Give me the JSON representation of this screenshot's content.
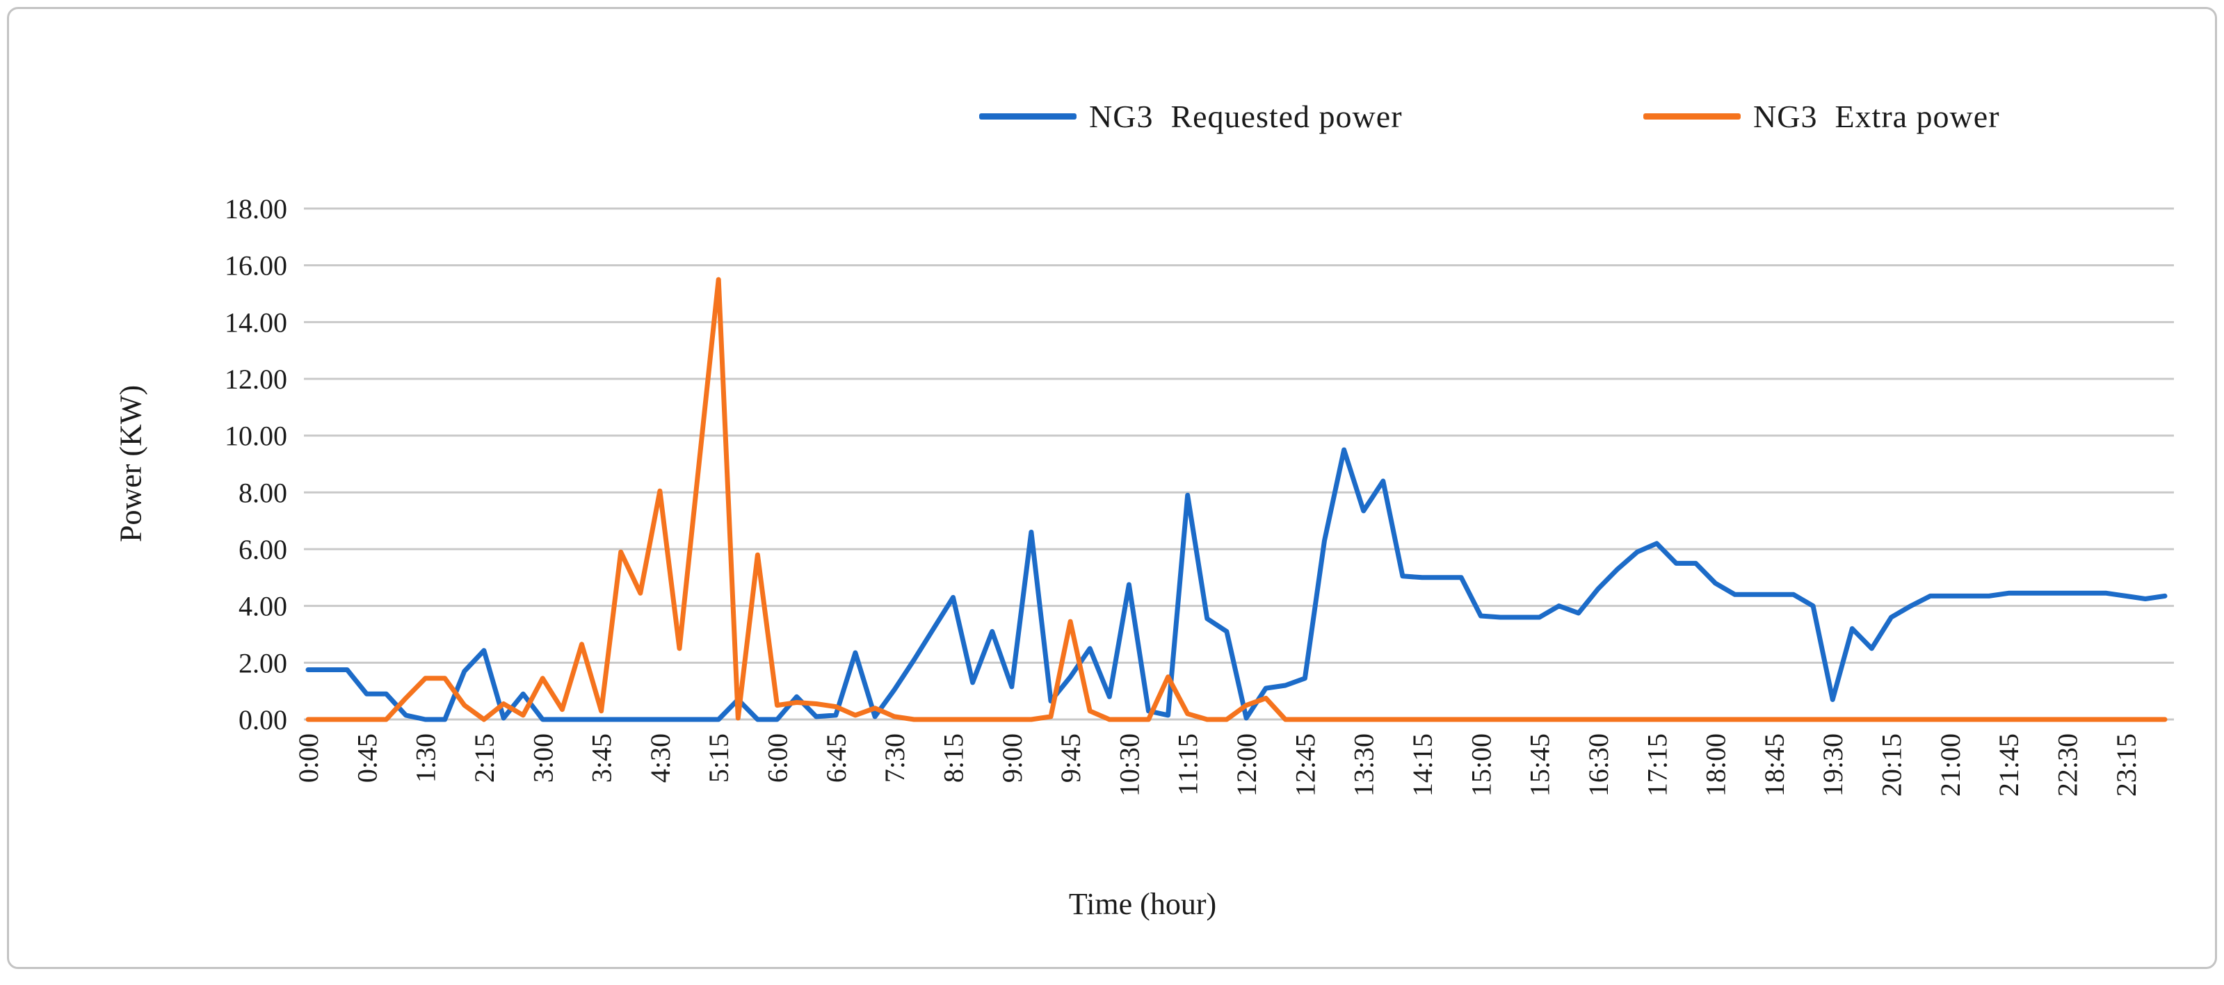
{
  "chart_data": {
    "type": "line",
    "title": "",
    "xlabel": "Time (hour)",
    "ylabel": "Power (KW)",
    "ylim": [
      0,
      18
    ],
    "y_tick_step": 2,
    "x_label_every": 3,
    "grid": "horizontal-only",
    "legend_position": "top",
    "categories": [
      "0:00",
      "0:15",
      "0:30",
      "0:45",
      "1:00",
      "1:15",
      "1:30",
      "1:45",
      "2:00",
      "2:15",
      "2:30",
      "2:45",
      "3:00",
      "3:15",
      "3:30",
      "3:45",
      "4:00",
      "4:15",
      "4:30",
      "4:45",
      "5:00",
      "5:15",
      "5:30",
      "5:45",
      "6:00",
      "6:15",
      "6:30",
      "6:45",
      "7:00",
      "7:15",
      "7:30",
      "7:45",
      "8:00",
      "8:15",
      "8:30",
      "8:45",
      "9:00",
      "9:15",
      "9:30",
      "9:45",
      "10:00",
      "10:15",
      "10:30",
      "10:45",
      "11:00",
      "11:15",
      "11:30",
      "11:45",
      "12:00",
      "12:15",
      "12:30",
      "12:45",
      "13:00",
      "13:15",
      "13:30",
      "13:45",
      "14:00",
      "14:15",
      "14:30",
      "14:45",
      "15:00",
      "15:15",
      "15:30",
      "15:45",
      "16:00",
      "16:15",
      "16:30",
      "16:45",
      "17:00",
      "17:15",
      "17:30",
      "17:45",
      "18:00",
      "18:15",
      "18:30",
      "18:45",
      "19:00",
      "19:15",
      "19:30",
      "19:45",
      "20:00",
      "20:15",
      "20:30",
      "20:45",
      "21:00",
      "21:15",
      "21:30",
      "21:45",
      "22:00",
      "22:15",
      "22:30",
      "22:45",
      "23:00",
      "23:15",
      "23:30",
      "23:45"
    ],
    "series": [
      {
        "name": "NG3  Requested power",
        "color": "#1C6BC8",
        "values": [
          1.75,
          1.75,
          1.75,
          0.9,
          0.9,
          0.15,
          0,
          0,
          1.7,
          2.43,
          0.05,
          0.9,
          0,
          0,
          0,
          0,
          0,
          0,
          0,
          0,
          0,
          0,
          0.7,
          0,
          0,
          0.8,
          0.1,
          0.15,
          2.35,
          0.1,
          1.05,
          2.1,
          3.2,
          4.3,
          1.3,
          3.1,
          1.15,
          6.6,
          0.65,
          1.5,
          2.5,
          0.8,
          4.75,
          0.3,
          0.15,
          7.9,
          3.55,
          3.1,
          0.05,
          1.1,
          1.2,
          1.45,
          6.3,
          9.5,
          7.35,
          8.4,
          5.05,
          5.0,
          5.0,
          5.0,
          3.65,
          3.6,
          3.6,
          3.6,
          4.0,
          3.75,
          4.6,
          5.3,
          5.9,
          6.2,
          5.5,
          5.5,
          4.8,
          4.4,
          4.4,
          4.4,
          4.4,
          4.0,
          0.7,
          3.2,
          2.5,
          3.6,
          4.0,
          4.35,
          4.35,
          4.35,
          4.35,
          4.45,
          4.45,
          4.45,
          4.45,
          4.45,
          4.45,
          4.35,
          4.25,
          4.35
        ]
      },
      {
        "name": "NG3  Extra power",
        "color": "#F5731D",
        "values": [
          0,
          0,
          0,
          0,
          0,
          0.75,
          1.45,
          1.45,
          0.5,
          0,
          0.55,
          0.15,
          1.45,
          0.35,
          2.65,
          0.3,
          5.9,
          4.45,
          8.05,
          2.5,
          9.0,
          15.5,
          0.05,
          5.8,
          0.5,
          0.6,
          0.55,
          0.45,
          0.15,
          0.4,
          0.1,
          0,
          0,
          0,
          0,
          0,
          0,
          0,
          0.1,
          3.45,
          0.3,
          0,
          0,
          0,
          1.5,
          0.2,
          0,
          0,
          0.5,
          0.75,
          0,
          0,
          0,
          0,
          0,
          0,
          0,
          0,
          0,
          0,
          0,
          0,
          0,
          0,
          0,
          0,
          0,
          0,
          0,
          0,
          0,
          0,
          0,
          0,
          0,
          0,
          0,
          0,
          0,
          0,
          0,
          0,
          0,
          0,
          0,
          0,
          0,
          0,
          0,
          0,
          0,
          0,
          0,
          0,
          0,
          0
        ]
      }
    ]
  },
  "colors": {
    "gridline": "#c9c9c9",
    "axis_text": "#1a1a1a",
    "panel_border": "#c3c3c3",
    "background": "#ffffff"
  }
}
